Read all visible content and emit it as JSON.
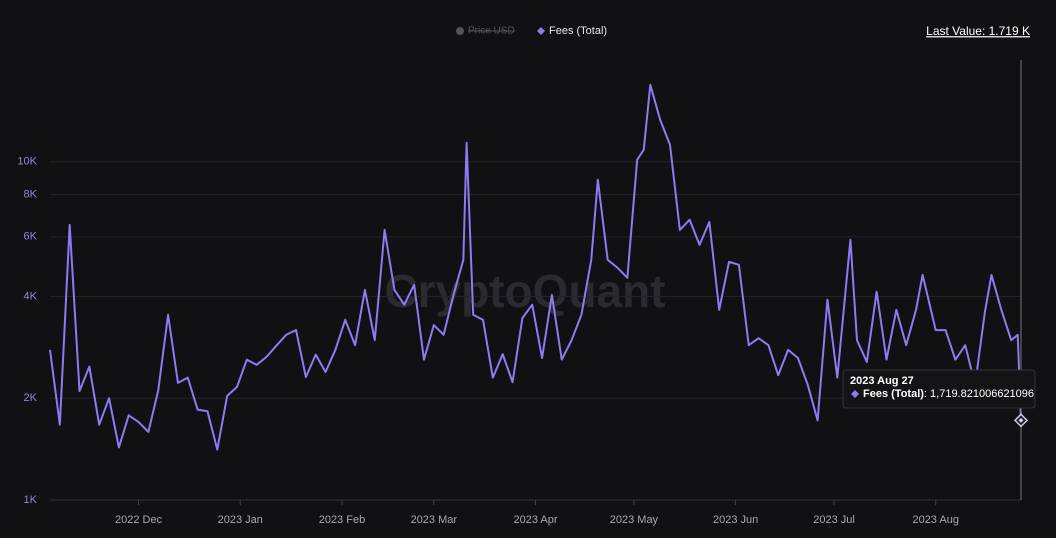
{
  "chart_data": {
    "type": "line",
    "log_scale": true,
    "grid": true,
    "watermark": "CryptoQuant",
    "last_value_label": "Last Value: 1.719 K",
    "inactive_legend": [
      "Price USD"
    ],
    "xlim": [
      "2022-11-04",
      "2023-08-27"
    ],
    "xticks": [
      {
        "value": "2022-12-01",
        "label": "2022 Dec"
      },
      {
        "value": "2023-01-01",
        "label": "2023 Jan"
      },
      {
        "value": "2023-02-01",
        "label": "2023 Feb"
      },
      {
        "value": "2023-03-01",
        "label": "2023 Mar"
      },
      {
        "value": "2023-04-01",
        "label": "2023 Apr"
      },
      {
        "value": "2023-05-01",
        "label": "2023 May"
      },
      {
        "value": "2023-06-01",
        "label": "2023 Jun"
      },
      {
        "value": "2023-07-01",
        "label": "2023 Jul"
      },
      {
        "value": "2023-08-01",
        "label": "2023 Aug"
      }
    ],
    "ylim": [
      1000,
      20000
    ],
    "yticks": [
      {
        "value": 1000,
        "label": "1K"
      },
      {
        "value": 2000,
        "label": "2K"
      },
      {
        "value": 4000,
        "label": "4K"
      },
      {
        "value": 6000,
        "label": "6K"
      },
      {
        "value": 8000,
        "label": "8K"
      },
      {
        "value": 10000,
        "label": "10K"
      }
    ],
    "x": [
      "2022-11-04",
      "2022-11-07",
      "2022-11-10",
      "2022-11-13",
      "2022-11-16",
      "2022-11-19",
      "2022-11-22",
      "2022-11-25",
      "2022-11-28",
      "2022-12-01",
      "2022-12-04",
      "2022-12-07",
      "2022-12-10",
      "2022-12-13",
      "2022-12-16",
      "2022-12-19",
      "2022-12-22",
      "2022-12-25",
      "2022-12-28",
      "2022-12-31",
      "2023-01-03",
      "2023-01-06",
      "2023-01-09",
      "2023-01-12",
      "2023-01-15",
      "2023-01-18",
      "2023-01-21",
      "2023-01-24",
      "2023-01-27",
      "2023-01-30",
      "2023-02-02",
      "2023-02-05",
      "2023-02-08",
      "2023-02-11",
      "2023-02-14",
      "2023-02-17",
      "2023-02-20",
      "2023-02-23",
      "2023-02-26",
      "2023-03-01",
      "2023-03-04",
      "2023-03-07",
      "2023-03-10",
      "2023-03-11",
      "2023-03-13",
      "2023-03-16",
      "2023-03-19",
      "2023-03-22",
      "2023-03-25",
      "2023-03-28",
      "2023-03-31",
      "2023-04-03",
      "2023-04-06",
      "2023-04-09",
      "2023-04-12",
      "2023-04-15",
      "2023-04-18",
      "2023-04-20",
      "2023-04-23",
      "2023-04-26",
      "2023-04-29",
      "2023-05-02",
      "2023-05-04",
      "2023-05-06",
      "2023-05-09",
      "2023-05-12",
      "2023-05-15",
      "2023-05-18",
      "2023-05-21",
      "2023-05-24",
      "2023-05-27",
      "2023-05-30",
      "2023-06-02",
      "2023-06-05",
      "2023-06-08",
      "2023-06-11",
      "2023-06-14",
      "2023-06-17",
      "2023-06-20",
      "2023-06-23",
      "2023-06-26",
      "2023-06-29",
      "2023-07-02",
      "2023-07-06",
      "2023-07-08",
      "2023-07-11",
      "2023-07-14",
      "2023-07-17",
      "2023-07-20",
      "2023-07-23",
      "2023-07-26",
      "2023-07-28",
      "2023-08-01",
      "2023-08-04",
      "2023-08-07",
      "2023-08-10",
      "2023-08-13",
      "2023-08-16",
      "2023-08-18",
      "2023-08-21",
      "2023-08-24",
      "2023-08-26",
      "2023-08-27"
    ],
    "series": [
      {
        "name": "Fees (Total)",
        "color": "#8b7cf2",
        "values": [
          2780,
          1670,
          6510,
          2100,
          2480,
          1670,
          2000,
          1430,
          1780,
          1700,
          1590,
          2110,
          3530,
          2220,
          2300,
          1850,
          1830,
          1410,
          2030,
          2160,
          2600,
          2510,
          2650,
          2860,
          3080,
          3180,
          2310,
          2690,
          2390,
          2780,
          3410,
          2870,
          4180,
          2970,
          6290,
          4180,
          3780,
          4330,
          2600,
          3290,
          3080,
          4040,
          5130,
          11380,
          3530,
          3410,
          2300,
          2700,
          2230,
          3450,
          3780,
          2630,
          4040,
          2600,
          2970,
          3530,
          5130,
          8850,
          5130,
          4860,
          4540,
          10140,
          10860,
          16900,
          13310,
          11230,
          6290,
          6740,
          5680,
          6640,
          3650,
          5060,
          4960,
          2870,
          3010,
          2870,
          2340,
          2780,
          2630,
          2190,
          1720,
          3910,
          2300,
          5880,
          2970,
          2560,
          4130,
          2600,
          3650,
          2870,
          3650,
          4630,
          3180,
          3180,
          2600,
          2870,
          2190,
          3600,
          4630,
          3650,
          2970,
          3080,
          1719.821006621096
        ]
      }
    ],
    "tooltip": {
      "date": "2023 Aug 27",
      "value_label": ": 1,719.821006621096"
    }
  }
}
